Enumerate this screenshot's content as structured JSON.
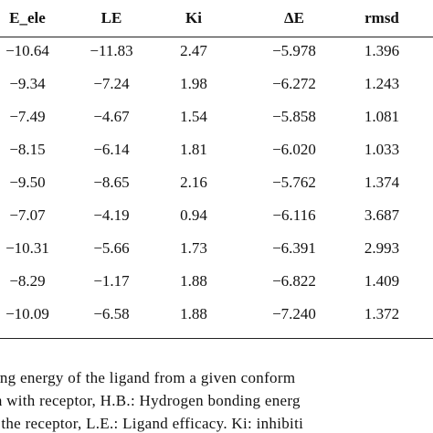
{
  "table": {
    "headers": [
      "E_ele",
      "LE",
      "Ki",
      "ΔE",
      "rmsd"
    ],
    "rows": [
      [
        "−10.64",
        "−11.83",
        "2.47",
        "−5.978",
        "1.396"
      ],
      [
        "−9.34",
        "−7.24",
        "1.98",
        "−6.272",
        "1.243"
      ],
      [
        "−7.49",
        "−4.67",
        "1.54",
        "−5.858",
        "1.081"
      ],
      [
        "−8.15",
        "−6.14",
        "1.81",
        "−6.020",
        "1.033"
      ],
      [
        "−9.50",
        "−8.65",
        "2.16",
        "−5.762",
        "1.374"
      ],
      [
        "−7.07",
        "−4.19",
        "0.94",
        "−6.116",
        "3.687"
      ],
      [
        "−10.31",
        "−5.66",
        "1.73",
        "−6.391",
        "2.993"
      ],
      [
        "−8.29",
        "−1.17",
        "1.88",
        "−6.822",
        "1.409"
      ],
      [
        "−10.09",
        "−6.58",
        "1.88",
        "−7.240",
        "1.372"
      ]
    ]
  },
  "footnote": {
    "lines": [
      "ding energy of the ligand from a given conform",
      "ion with receptor, H.B.: Hydrogen bonding energ",
      "h the receptor, L.E.: Ligand efficacy. Ki: inhibiti"
    ]
  }
}
